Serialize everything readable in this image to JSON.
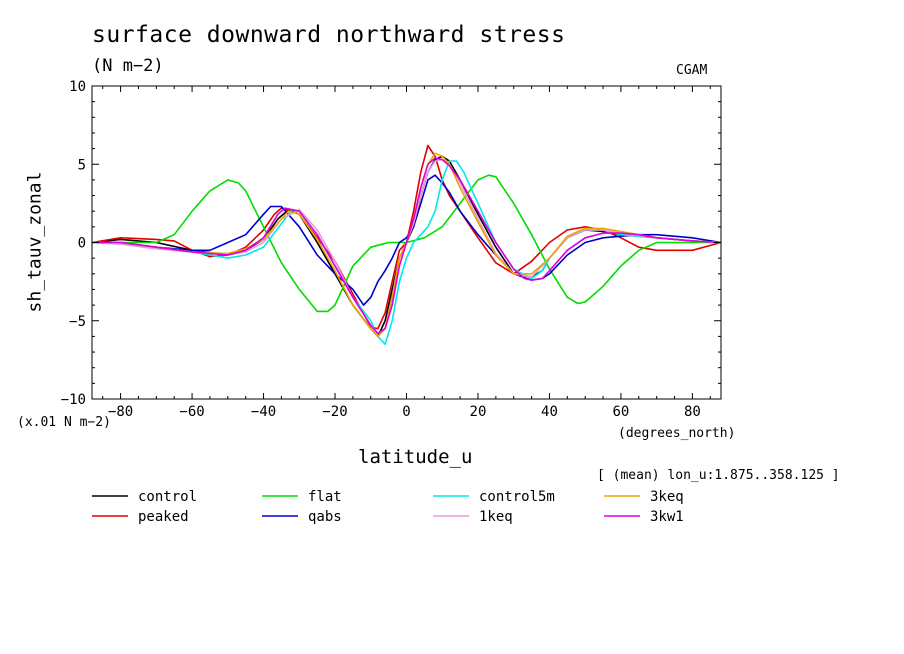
{
  "title": "surface downward northward stress",
  "units": "(N m−2)",
  "source": "CGAM",
  "ylabel": "sh_tauv_zonal",
  "scale_note": "(x.01 N m−2)",
  "x_units": "(degrees_north)",
  "xlabel": "latitude_u",
  "averaging_note": "[ (mean) lon_u:1.875..358.125 ]",
  "chart_data": {
    "type": "line",
    "title": "surface downward northward stress",
    "xlabel": "latitude_u",
    "ylabel": "sh_tauv_zonal",
    "xlim": [
      -88,
      88
    ],
    "ylim": [
      -10,
      10
    ],
    "xticks": [
      -80,
      -60,
      -40,
      -20,
      0,
      20,
      40,
      60,
      80
    ],
    "yticks": [
      -10,
      -5,
      0,
      5,
      10
    ],
    "series": [
      {
        "name": "control",
        "color": "#000000",
        "x": [
          -88,
          -80,
          -70,
          -60,
          -50,
          -45,
          -40,
          -36,
          -33,
          -30,
          -25,
          -20,
          -15,
          -10,
          -8,
          -6,
          -4,
          -2,
          0,
          2,
          4,
          6,
          8,
          10,
          12,
          15,
          20,
          25,
          30,
          35,
          38,
          40,
          45,
          50,
          55,
          60,
          70,
          80,
          88
        ],
        "y": [
          0,
          0.2,
          0,
          -0.5,
          -0.8,
          -0.5,
          0.2,
          1.5,
          2.1,
          1.8,
          0,
          -2,
          -4,
          -5.5,
          -6,
          -5,
          -3,
          -1,
          0,
          1,
          3,
          4.5,
          5.3,
          5.5,
          5.2,
          4,
          1.8,
          -0.3,
          -2,
          -2.2,
          -1.8,
          -1,
          0.3,
          0.8,
          0.7,
          0.5,
          0.3,
          0.1,
          0
        ]
      },
      {
        "name": "peaked",
        "color": "#e00000",
        "x": [
          -88,
          -80,
          -70,
          -65,
          -60,
          -55,
          -50,
          -45,
          -40,
          -37,
          -35,
          -30,
          -25,
          -20,
          -15,
          -10,
          -8,
          -6,
          -4,
          -2,
          0,
          2,
          4,
          6,
          8,
          10,
          12,
          15,
          20,
          25,
          30,
          35,
          40,
          45,
          50,
          55,
          60,
          65,
          70,
          80,
          88
        ],
        "y": [
          0,
          0.3,
          0.2,
          0.1,
          -0.5,
          -0.9,
          -0.8,
          -0.3,
          0.8,
          1.8,
          2.2,
          1.8,
          0.3,
          -1.2,
          -3.3,
          -5.4,
          -5.5,
          -4.5,
          -2.5,
          -0.5,
          0,
          2,
          4.5,
          6.2,
          5.5,
          4,
          3,
          2,
          0.3,
          -1.3,
          -2,
          -1.2,
          0,
          0.8,
          1,
          0.8,
          0.3,
          -0.3,
          -0.5,
          -0.5,
          0
        ]
      },
      {
        "name": "flat",
        "color": "#00dd00",
        "x": [
          -88,
          -80,
          -75,
          -70,
          -65,
          -60,
          -55,
          -50,
          -47,
          -45,
          -40,
          -35,
          -30,
          -25,
          -22,
          -20,
          -15,
          -10,
          -5,
          0,
          5,
          10,
          15,
          20,
          23,
          25,
          30,
          35,
          40,
          45,
          48,
          50,
          55,
          60,
          65,
          70,
          75,
          80,
          88
        ],
        "y": [
          0,
          0,
          0,
          0,
          0.5,
          2,
          3.3,
          4,
          3.8,
          3.3,
          1,
          -1.3,
          -3,
          -4.4,
          -4.4,
          -4,
          -1.5,
          -0.3,
          0,
          0,
          0.3,
          1,
          2.5,
          4,
          4.3,
          4.2,
          2.5,
          0.5,
          -1.7,
          -3.5,
          -3.9,
          -3.8,
          -2.8,
          -1.5,
          -0.5,
          0,
          0,
          0,
          0
        ]
      },
      {
        "name": "qabs",
        "color": "#0000cc",
        "x": [
          -88,
          -80,
          -70,
          -60,
          -55,
          -50,
          -45,
          -40,
          -38,
          -35,
          -30,
          -25,
          -20,
          -15,
          -12,
          -10,
          -8,
          -6,
          -4,
          -2,
          0,
          2,
          4,
          6,
          8,
          10,
          12,
          15,
          20,
          25,
          30,
          35,
          38,
          40,
          45,
          50,
          55,
          60,
          65,
          70,
          80,
          88
        ],
        "y": [
          0,
          0,
          -0.3,
          -0.5,
          -0.5,
          0,
          0.5,
          1.8,
          2.3,
          2.3,
          1,
          -0.8,
          -2,
          -3,
          -4,
          -3.5,
          -2.5,
          -1.8,
          -1,
          0,
          0.3,
          1,
          2.5,
          4,
          4.3,
          3.8,
          3.2,
          2,
          0.5,
          -0.8,
          -2,
          -2.4,
          -2.3,
          -2,
          -0.8,
          0,
          0.3,
          0.4,
          0.5,
          0.5,
          0.3,
          0
        ]
      },
      {
        "name": "control5m",
        "color": "#00e8e8",
        "x": [
          -88,
          -80,
          -70,
          -60,
          -50,
          -45,
          -40,
          -35,
          -32,
          -30,
          -25,
          -20,
          -15,
          -10,
          -8,
          -6,
          -4,
          -2,
          0,
          2,
          4,
          6,
          8,
          10,
          12,
          14,
          16,
          20,
          25,
          30,
          35,
          38,
          40,
          45,
          50,
          55,
          60,
          70,
          80,
          88
        ],
        "y": [
          0,
          -0.1,
          -0.3,
          -0.6,
          -1,
          -0.8,
          -0.3,
          1.2,
          2.1,
          2,
          0.5,
          -1.5,
          -3.5,
          -5,
          -6,
          -6.5,
          -5,
          -2.5,
          -1,
          0,
          0.5,
          1,
          2,
          4,
          5.2,
          5.2,
          4.5,
          2.5,
          0,
          -1.7,
          -2.3,
          -1.8,
          -1,
          0.3,
          0.8,
          0.8,
          0.5,
          0.3,
          0.1,
          0
        ]
      },
      {
        "name": "1keq",
        "color": "#e89adb",
        "x": [
          -88,
          -80,
          -70,
          -60,
          -50,
          -45,
          -40,
          -35,
          -30,
          -25,
          -20,
          -15,
          -10,
          -8,
          -6,
          -4,
          -2,
          0,
          2,
          4,
          6,
          8,
          10,
          12,
          15,
          20,
          25,
          30,
          35,
          40,
          45,
          50,
          55,
          60,
          70,
          80,
          88
        ],
        "y": [
          0,
          -0.1,
          -0.4,
          -0.6,
          -0.8,
          -0.6,
          0,
          1.5,
          2.1,
          0.8,
          -1.2,
          -3.5,
          -5.3,
          -6,
          -5.5,
          -3.5,
          -1,
          0,
          1.2,
          3,
          4.5,
          5.2,
          5.3,
          5,
          3.8,
          1.5,
          -0.7,
          -2,
          -2.2,
          -1,
          0.3,
          0.8,
          0.8,
          0.6,
          0.3,
          0.1,
          0
        ]
      },
      {
        "name": "3keq",
        "color": "#e8a800",
        "x": [
          -88,
          -80,
          -70,
          -60,
          -50,
          -45,
          -40,
          -35,
          -33,
          -30,
          -25,
          -20,
          -15,
          -10,
          -8,
          -6,
          -4,
          -2,
          0,
          2,
          4,
          6,
          8,
          10,
          12,
          15,
          20,
          25,
          30,
          35,
          40,
          45,
          50,
          55,
          60,
          70,
          80,
          88
        ],
        "y": [
          0,
          0,
          -0.3,
          -0.6,
          -0.7,
          -0.4,
          0.2,
          1.5,
          2,
          1.8,
          0.2,
          -1.8,
          -4,
          -5.5,
          -6,
          -5.5,
          -3.5,
          -1,
          0,
          1.5,
          3.5,
          5,
          5.7,
          5.5,
          5,
          3.5,
          1.3,
          -0.8,
          -2,
          -2,
          -1,
          0.4,
          0.9,
          0.9,
          0.7,
          0.3,
          0.1,
          0
        ]
      },
      {
        "name": "3kw1",
        "color": "#dd00dd",
        "x": [
          -88,
          -80,
          -70,
          -60,
          -50,
          -45,
          -40,
          -36,
          -34,
          -30,
          -25,
          -20,
          -15,
          -10,
          -8,
          -6,
          -4,
          -2,
          0,
          2,
          4,
          6,
          8,
          10,
          12,
          15,
          20,
          25,
          30,
          33,
          35,
          38,
          40,
          45,
          50,
          55,
          60,
          65,
          70,
          80,
          88
        ],
        "y": [
          0,
          0,
          -0.3,
          -0.6,
          -0.8,
          -0.5,
          0.3,
          1.8,
          2.2,
          2,
          0.5,
          -1.5,
          -3.5,
          -5.3,
          -5.8,
          -5.5,
          -4,
          -1.5,
          0,
          1.5,
          3.5,
          5,
          5.4,
          5.3,
          4.9,
          4,
          2,
          0,
          -1.7,
          -2.3,
          -2.4,
          -2.3,
          -1.8,
          -0.5,
          0.3,
          0.6,
          0.6,
          0.5,
          0.3,
          0.1,
          0
        ]
      }
    ]
  }
}
